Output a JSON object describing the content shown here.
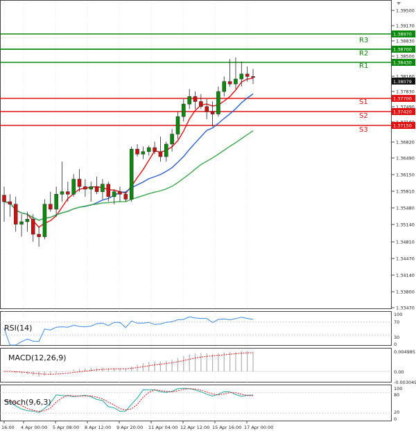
{
  "window": {
    "corner_icon": "menu-arrow-icon"
  },
  "colors": {
    "resistance": "#0a8a0a",
    "support": "#e01010",
    "bull_candle": "#0a8a0a",
    "bear_candle": "#cc1111",
    "ma_fast": "#e01010",
    "ma_mid": "#2a5fc8",
    "ma_slow": "#3aa84a",
    "rsi": "#3a8ae0",
    "macd_hist": "#b0b0b0",
    "macd_signal": "#e01010",
    "stoch_main": "#1fa6a6",
    "stoch_signal": "#e01010",
    "grid": "#d9d9d9"
  },
  "price_axis": {
    "labels": [
      "1.39500",
      "1.39170",
      "1.38830",
      "1.38500",
      "1.38160",
      "1.37830",
      "1.37490",
      "1.37160",
      "1.36820",
      "1.36490",
      "1.36150",
      "1.35810",
      "1.35480",
      "1.35140",
      "1.34810",
      "1.34470",
      "1.34140",
      "1.33800",
      "1.33470"
    ]
  },
  "levels": [
    {
      "name": "",
      "tag": "1.38970",
      "kind": "resistance"
    },
    {
      "name": "R3",
      "tag": "1.38700",
      "kind": "resistance"
    },
    {
      "name": "R2",
      "tag": "",
      "kind": "resistance"
    },
    {
      "name": "R1",
      "tag": "1.38430",
      "kind": "resistance"
    },
    {
      "name": "S1",
      "tag": "1.37700",
      "kind": "support"
    },
    {
      "name": "S2",
      "tag": "1.37420",
      "kind": "support"
    },
    {
      "name": "S3",
      "tag": "1.37150",
      "kind": "support"
    }
  ],
  "current_price": "1.38079",
  "indicators": {
    "rsi": {
      "title": "RSI(14)",
      "labels": [
        "100",
        "70",
        "30",
        "0"
      ]
    },
    "macd": {
      "title": "MACD(12,26,9)",
      "labels": [
        "0.004985",
        "0.00",
        "-0.003049"
      ]
    },
    "stoch": {
      "title": "Stoch(9,6,3)",
      "labels": [
        "100",
        "80",
        "20",
        "0"
      ]
    }
  },
  "time_axis": {
    "labels": [
      "16:00",
      "4 Apr 00:00",
      "5 Apr 08:00",
      "8 Apr 12:00",
      "9 Apr 20:00",
      "11 Apr 04:00",
      "12 Apr 12:00",
      "15 Apr 16:00",
      "17 Apr 00:00"
    ]
  },
  "chart_data": {
    "type": "candlestick",
    "y_range": [
      1.3347,
      1.396
    ],
    "candles": [
      [
        1.3573,
        1.359,
        1.352,
        1.356
      ],
      [
        1.356,
        1.3575,
        1.353,
        1.3555
      ],
      [
        1.3555,
        1.357,
        1.35,
        1.3515
      ],
      [
        1.3515,
        1.3535,
        1.349,
        1.352
      ],
      [
        1.352,
        1.354,
        1.35,
        1.3525
      ],
      [
        1.3525,
        1.3535,
        1.348,
        1.3495
      ],
      [
        1.3495,
        1.351,
        1.347,
        1.349
      ],
      [
        1.349,
        1.3565,
        1.3485,
        1.3555
      ],
      [
        1.3555,
        1.358,
        1.354,
        1.3545
      ],
      [
        1.3545,
        1.359,
        1.353,
        1.3575
      ],
      [
        1.3575,
        1.364,
        1.356,
        1.358
      ],
      [
        1.358,
        1.36,
        1.356,
        1.3575
      ],
      [
        1.3575,
        1.3615,
        1.357,
        1.3605
      ],
      [
        1.3605,
        1.3625,
        1.358,
        1.359
      ],
      [
        1.359,
        1.3605,
        1.357,
        1.3585
      ],
      [
        1.3585,
        1.36,
        1.356,
        1.359
      ],
      [
        1.359,
        1.361,
        1.3575,
        1.358
      ],
      [
        1.358,
        1.3605,
        1.3565,
        1.3595
      ],
      [
        1.3595,
        1.36,
        1.356,
        1.357
      ],
      [
        1.357,
        1.3585,
        1.3555,
        1.358
      ],
      [
        1.358,
        1.359,
        1.356,
        1.3575
      ],
      [
        1.3575,
        1.358,
        1.356,
        1.3565
      ],
      [
        1.3565,
        1.367,
        1.356,
        1.3665
      ],
      [
        1.3665,
        1.3675,
        1.365,
        1.3655
      ],
      [
        1.3655,
        1.367,
        1.3645,
        1.366
      ],
      [
        1.366,
        1.3672,
        1.3652,
        1.3668
      ],
      [
        1.3668,
        1.368,
        1.3655,
        1.366
      ],
      [
        1.366,
        1.369,
        1.364,
        1.365
      ],
      [
        1.365,
        1.368,
        1.364,
        1.3675
      ],
      [
        1.3675,
        1.3705,
        1.366,
        1.3695
      ],
      [
        1.3695,
        1.374,
        1.3685,
        1.373
      ],
      [
        1.373,
        1.3765,
        1.372,
        1.3755
      ],
      [
        1.3755,
        1.3785,
        1.3745,
        1.377
      ],
      [
        1.377,
        1.378,
        1.3745,
        1.376
      ],
      [
        1.376,
        1.3775,
        1.3745,
        1.375
      ],
      [
        1.375,
        1.3765,
        1.3725,
        1.374
      ],
      [
        1.374,
        1.376,
        1.371,
        1.3735
      ],
      [
        1.3735,
        1.379,
        1.373,
        1.378
      ],
      [
        1.378,
        1.381,
        1.377,
        1.38
      ],
      [
        1.38,
        1.3845,
        1.379,
        1.3795
      ],
      [
        1.3795,
        1.3848,
        1.3785,
        1.3805
      ],
      [
        1.3805,
        1.384,
        1.379,
        1.3815
      ],
      [
        1.3815,
        1.383,
        1.38,
        1.381
      ],
      [
        1.381,
        1.3825,
        1.3795,
        1.3808
      ]
    ]
  }
}
